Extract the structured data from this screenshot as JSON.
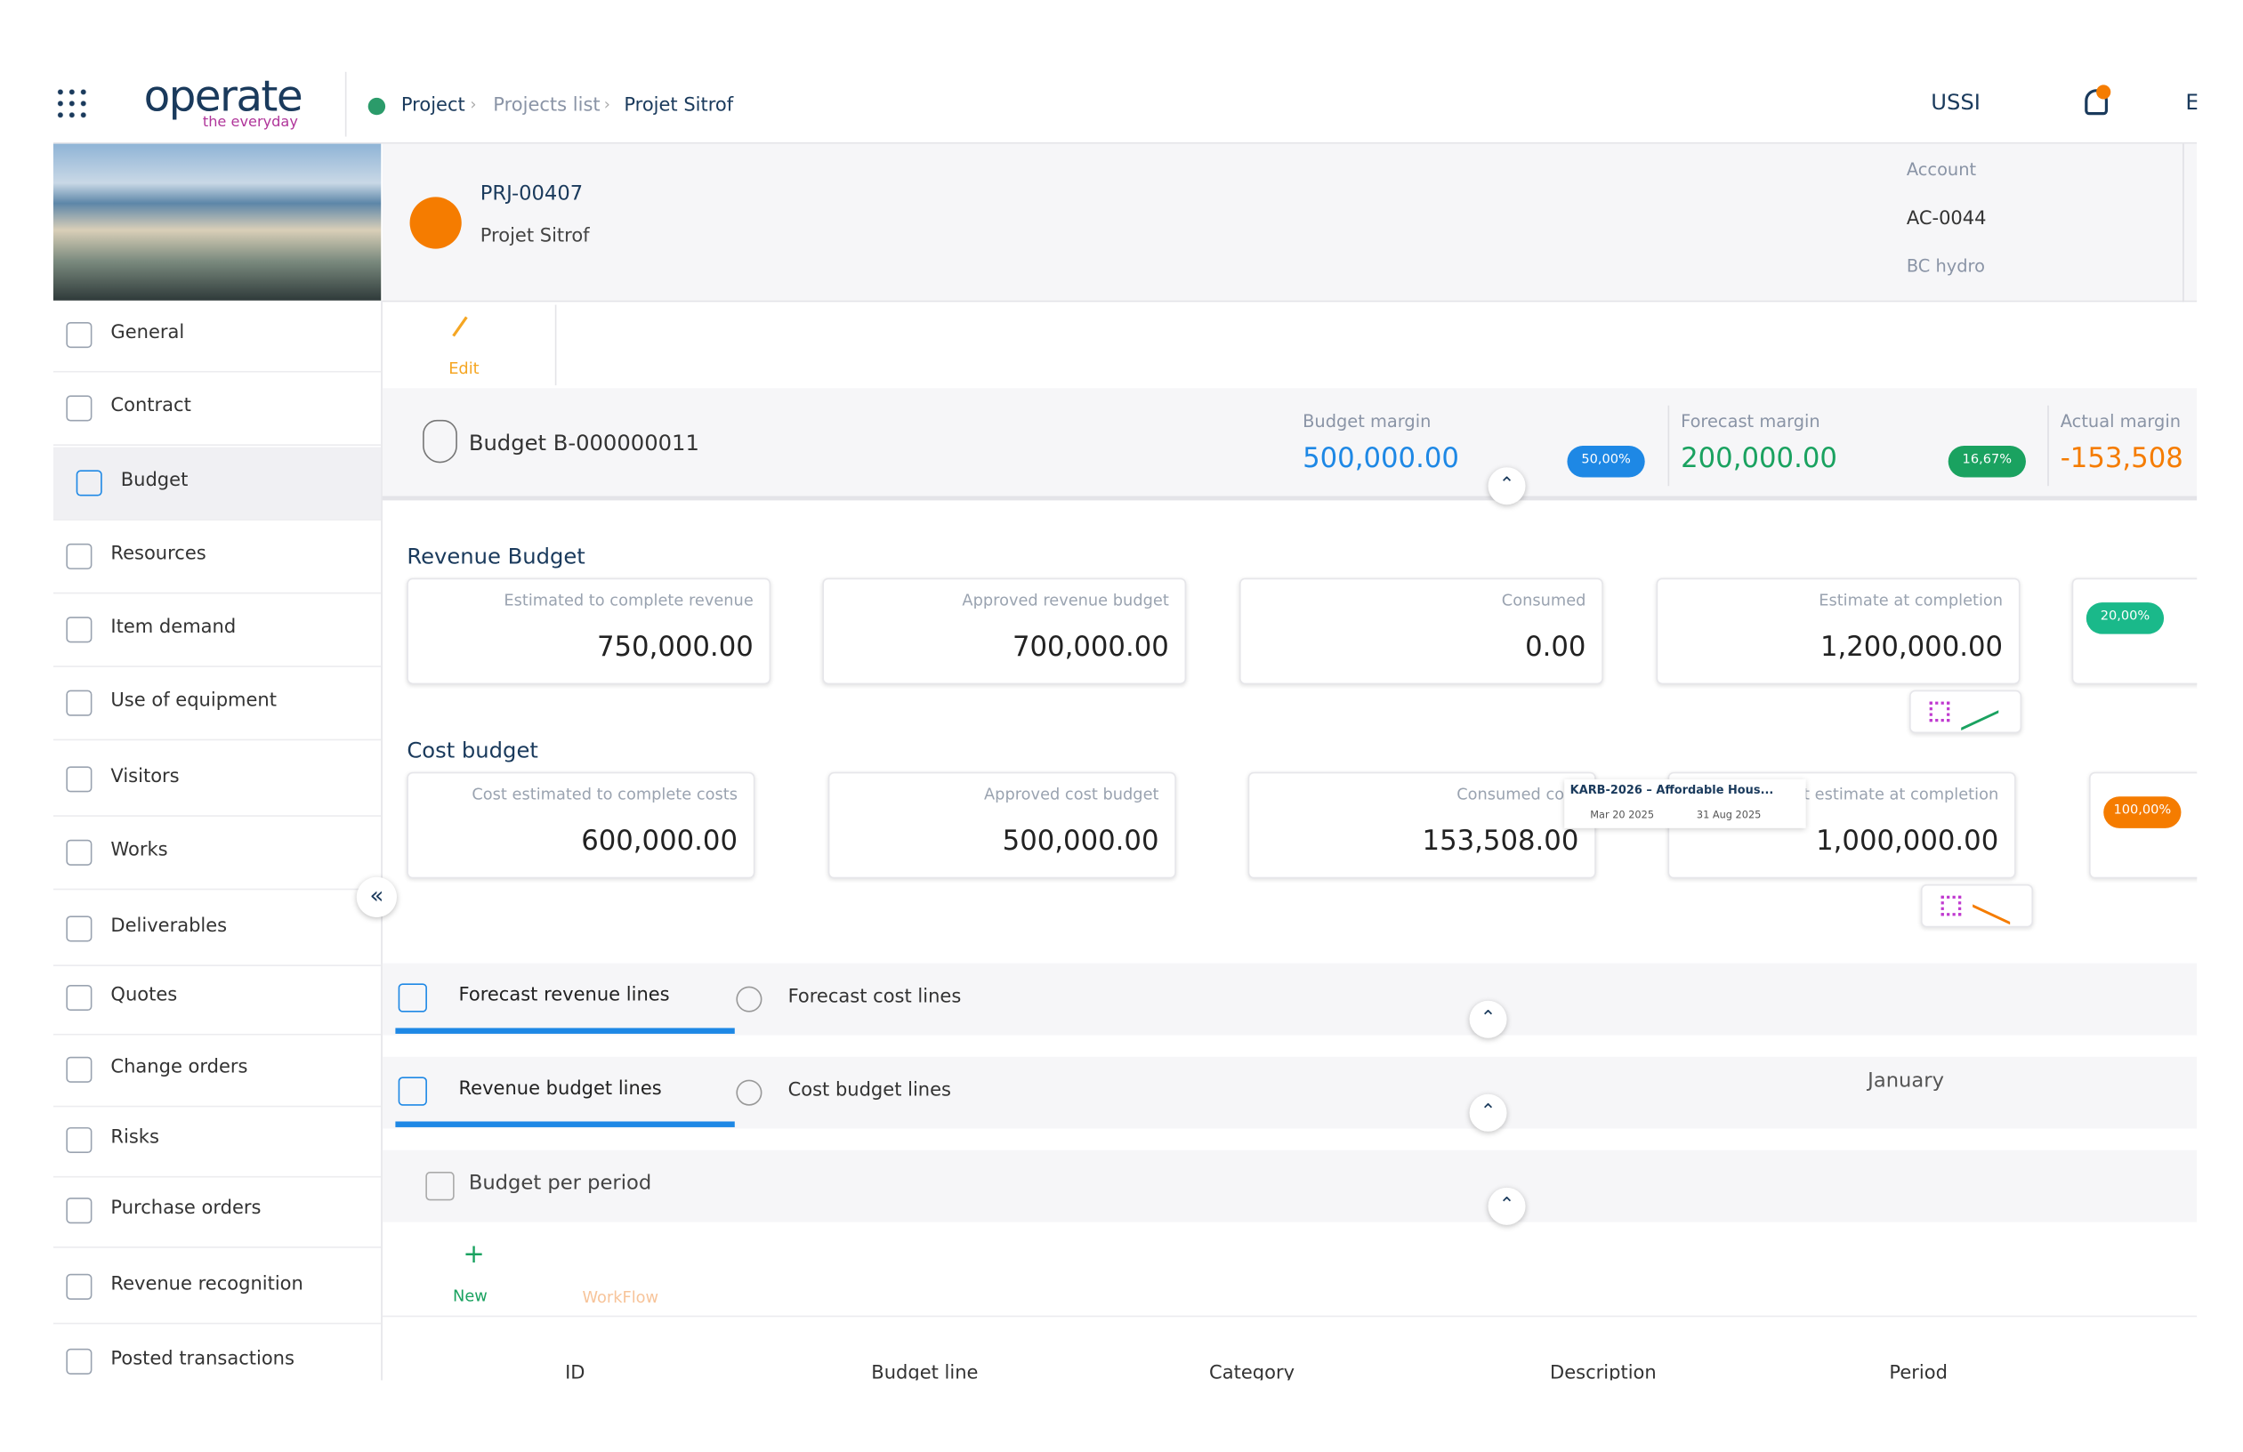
{
  "header": {
    "brand": "operate",
    "tagline": "the everyday",
    "breadcrumb": [
      "Project",
      "Projects list",
      "Projet Sitrof"
    ],
    "user": "USSI",
    "extra": "E"
  },
  "project": {
    "id": "PRJ-00407",
    "name": "Projet Sitrof",
    "account_label": "Account",
    "account_id": "AC-0044",
    "account_name": "BC hydro"
  },
  "edit": "Edit",
  "budget": {
    "title": "Budget B-000000011",
    "margins": [
      {
        "label": "Budget margin",
        "value": "500,000.00",
        "badge": "50,00%"
      },
      {
        "label": "Forecast margin",
        "value": "200,000.00",
        "badge": "16,67%"
      },
      {
        "label": "Actual margin",
        "value": "-153,508"
      }
    ]
  },
  "revenue_budget": {
    "title": "Revenue Budget",
    "cards": [
      {
        "label": "Estimated to complete revenue",
        "value": "750,000.00"
      },
      {
        "label": "Approved revenue budget",
        "value": "700,000.00"
      },
      {
        "label": "Consumed",
        "value": "0.00"
      },
      {
        "label": "Estimate at completion",
        "value": "1,200,000.00"
      }
    ],
    "badge": "20,00%"
  },
  "cost_budget": {
    "title": "Cost budget",
    "cards": [
      {
        "label": "Cost estimated to complete costs",
        "value": "600,000.00"
      },
      {
        "label": "Approved cost budget",
        "value": "500,000.00"
      },
      {
        "label": "Consumed cost",
        "value": "153,508.00"
      },
      {
        "label": "Cost estimate at completion",
        "value": "1,000,000.00"
      }
    ],
    "badge": "100,00%"
  },
  "tooltip": {
    "title": "KARB-2026 – Affordable Hous...",
    "start": "Mar 20 2025",
    "end": "31 Aug 2025"
  },
  "tabs": {
    "row1": [
      "Forecast revenue lines",
      "Forecast cost lines"
    ],
    "row2": [
      "Revenue budget lines",
      "Cost budget lines"
    ],
    "period": "January",
    "row3": "Budget per period"
  },
  "toolbar": [
    "New",
    "WorkFlow"
  ],
  "table": {
    "columns": [
      "ID",
      "Budget line",
      "Category",
      "Description",
      "Period"
    ]
  },
  "sidebar": [
    "General",
    "Contract",
    "Budget",
    "Resources",
    "Item demand",
    "Use of equipment",
    "Visitors",
    "Works",
    "Deliverables",
    "Quotes",
    "Change orders",
    "Risks",
    "Purchase orders",
    "Revenue recognition",
    "Posted transactions"
  ]
}
